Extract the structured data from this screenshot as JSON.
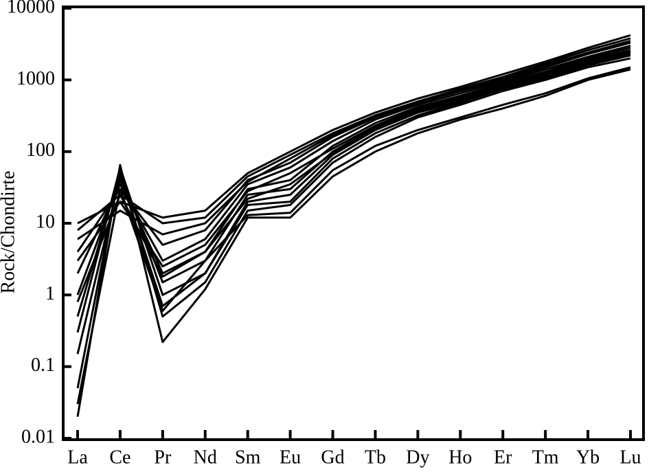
{
  "chart_data": {
    "type": "line",
    "y_label": "Rock/Chondirte",
    "log_scale": true,
    "categories": [
      "La",
      "Ce",
      "Pr",
      "Nd",
      "Sm",
      "Eu",
      "Gd",
      "Tb",
      "Dy",
      "Ho",
      "Er",
      "Tm",
      "Yb",
      "Lu"
    ],
    "ylim": [
      0.01,
      10000
    ],
    "yticks": [
      0.01,
      0.1,
      1,
      10,
      100,
      1000,
      10000
    ],
    "series": [
      {
        "color": "#000000",
        "values": [
          10,
          20,
          12,
          15,
          50,
          100,
          200,
          350,
          550,
          800,
          1200,
          1800,
          2800,
          4200
        ]
      },
      {
        "color": "#000000",
        "values": [
          8,
          25,
          10,
          12,
          45,
          90,
          180,
          320,
          500,
          750,
          1100,
          1700,
          2600,
          3800
        ]
      },
      {
        "color": "#000000",
        "values": [
          4,
          30,
          5,
          8,
          40,
          70,
          160,
          300,
          480,
          700,
          1000,
          1500,
          2300,
          3300
        ]
      },
      {
        "color": "#000000",
        "values": [
          2,
          35,
          3,
          6,
          35,
          60,
          140,
          280,
          450,
          650,
          950,
          1400,
          2100,
          3000
        ]
      },
      {
        "color": "#000000",
        "values": [
          1,
          40,
          2,
          4,
          30,
          40,
          120,
          250,
          420,
          600,
          900,
          1300,
          2000,
          2800
        ]
      },
      {
        "color": "#000000",
        "values": [
          0.5,
          50,
          1.5,
          3,
          25,
          30,
          100,
          220,
          380,
          550,
          850,
          1200,
          1800,
          2500
        ]
      },
      {
        "color": "#000000",
        "values": [
          0.3,
          60,
          1,
          2,
          20,
          25,
          90,
          200,
          350,
          500,
          800,
          1100,
          1700,
          2300
        ]
      },
      {
        "color": "#000000",
        "values": [
          0.15,
          45,
          0.7,
          2,
          18,
          20,
          80,
          180,
          320,
          480,
          750,
          1050,
          1600,
          2200
        ]
      },
      {
        "color": "#000000",
        "values": [
          0.05,
          55,
          0.5,
          1.5,
          15,
          18,
          70,
          160,
          300,
          450,
          700,
          1000,
          1500,
          2000
        ]
      },
      {
        "color": "#000000",
        "values": [
          0.02,
          65,
          0.22,
          1.2,
          12,
          12,
          45,
          100,
          180,
          280,
          400,
          600,
          1000,
          1400
        ]
      },
      {
        "color": "#000000",
        "values": [
          0.03,
          30,
          0.6,
          3,
          13,
          14,
          55,
          120,
          200,
          300,
          450,
          650,
          1050,
          1500
        ]
      },
      {
        "color": "#000000",
        "values": [
          3,
          20,
          2.5,
          5,
          28,
          50,
          110,
          230,
          400,
          580,
          870,
          1250,
          1900,
          2600
        ]
      },
      {
        "color": "#000000",
        "values": [
          0.8,
          25,
          1.8,
          4,
          22,
          35,
          95,
          210,
          360,
          520,
          820,
          1150,
          1750,
          2400
        ]
      },
      {
        "color": "#000000",
        "values": [
          6,
          15,
          7,
          10,
          38,
          80,
          170,
          310,
          490,
          720,
          1050,
          1600,
          2400,
          3500
        ]
      }
    ]
  }
}
